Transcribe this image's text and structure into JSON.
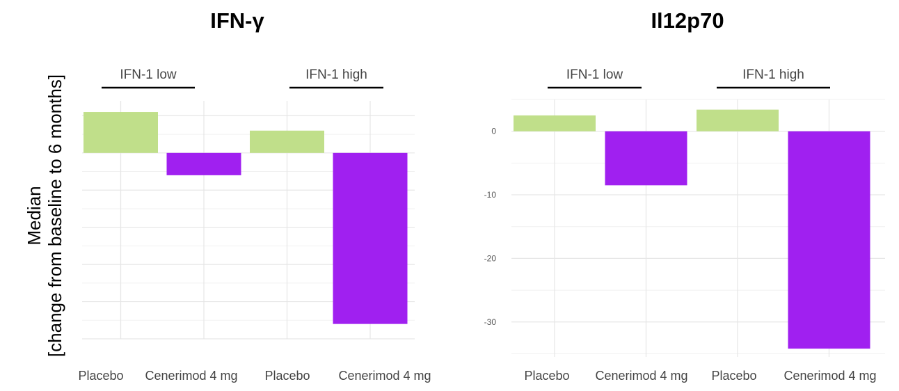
{
  "colors": {
    "placebo": "#c0df8a",
    "cenerimod": "#a020f0"
  },
  "ylabel_line1": "Median",
  "ylabel_line2": "[change from baseline to 6 months]",
  "chart_data": [
    {
      "type": "bar",
      "title": "IFN-γ",
      "groups": [
        {
          "label": "IFN-1 low",
          "categories": [
            "Placebo",
            "Cenerimod 4 mg"
          ],
          "values": [
            0.11,
            -0.06
          ]
        },
        {
          "label": "IFN-1 high",
          "categories": [
            "Placebo",
            "Cenerimod 4 mg"
          ],
          "values": [
            0.06,
            -0.46
          ]
        }
      ],
      "categories": [
        "Placebo",
        "Cenerimod 4 mg",
        "Placebo",
        "Cenerimod 4 mg"
      ],
      "values": [
        0.11,
        -0.06,
        0.06,
        -0.46
      ],
      "ylim": [
        -0.5,
        0.14
      ],
      "yticks": [],
      "grid": true,
      "legend": "none"
    },
    {
      "type": "bar",
      "title": "Il12p70",
      "groups": [
        {
          "label": "IFN-1 low",
          "categories": [
            "Placebo",
            "Cenerimod 4 mg"
          ],
          "values": [
            2.5,
            -8.5
          ]
        },
        {
          "label": "IFN-1 high",
          "categories": [
            "Placebo",
            "Cenerimod 4 mg"
          ],
          "values": [
            3.4,
            -34.2
          ]
        }
      ],
      "categories": [
        "Placebo",
        "Cenerimod 4 mg",
        "Placebo",
        "Cenerimod 4 mg"
      ],
      "values": [
        2.5,
        -8.5,
        3.4,
        -34.2
      ],
      "ylim": [
        -35.5,
        5
      ],
      "yticks": [
        0,
        -10,
        -20,
        -30
      ],
      "grid": true,
      "legend": "none"
    }
  ]
}
